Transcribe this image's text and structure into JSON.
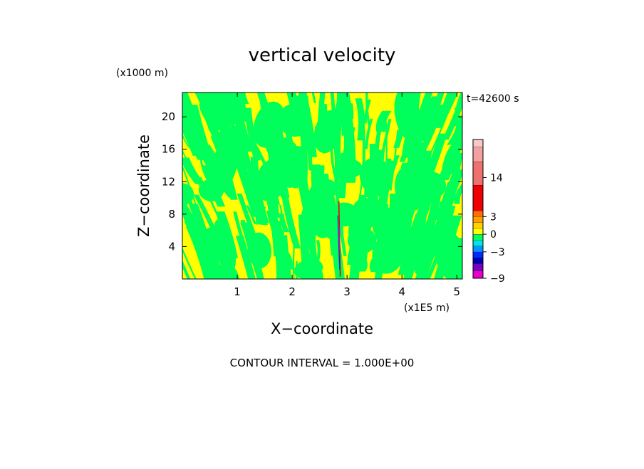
{
  "chart_data": {
    "type": "heatmap",
    "title": "vertical velocity",
    "xlabel": "X−coordinate",
    "ylabel": "Z−coordinate",
    "x_unit": "(x1E5 m)",
    "y_unit": "(x1000 m)",
    "time_label": "t=42600 s",
    "footer": "CONTOUR INTERVAL = 1.000E+00",
    "xlim": [
      0,
      5.1
    ],
    "ylim": [
      0,
      23
    ],
    "x_ticks": [
      1,
      2,
      3,
      4,
      5
    ],
    "x_tick_labels": [
      "1",
      "2",
      "3",
      "4",
      "5"
    ],
    "y_ticks": [
      4,
      8,
      12,
      16,
      20
    ],
    "y_tick_labels": [
      "4",
      "8",
      "12",
      "16",
      "20"
    ],
    "field_description": "turbulent vertically streaked field alternating between small positive (yellow) and small negative (green) vertical velocity, with a narrow strong updraft/downdraft column near x=2.85",
    "dominant_levels": [
      {
        "label": "0 to 1",
        "color": "#ffff00"
      },
      {
        "label": "-1 to 0",
        "color": "#00ff5a"
      }
    ],
    "colorbar": {
      "tick_labels": [
        "14",
        "3",
        "0",
        "−3",
        "−9"
      ],
      "tick_values": [
        14,
        3,
        0,
        -3,
        -9
      ],
      "segments": [
        {
          "from": -9,
          "to": -7,
          "color": "#e600c8"
        },
        {
          "from": -7,
          "to": -5,
          "color": "#7a00c0"
        },
        {
          "from": -5,
          "to": -4,
          "color": "#0000b4"
        },
        {
          "from": -4,
          "to": -3,
          "color": "#0028ff"
        },
        {
          "from": -3,
          "to": -2,
          "color": "#0096ff"
        },
        {
          "from": -2,
          "to": -1,
          "color": "#00e6e6"
        },
        {
          "from": -1,
          "to": 0,
          "color": "#00ff5a"
        },
        {
          "from": 0,
          "to": 1,
          "color": "#ffff00"
        },
        {
          "from": 1,
          "to": 2,
          "color": "#ffd200"
        },
        {
          "from": 2,
          "to": 3,
          "color": "#ffa000"
        },
        {
          "from": 3,
          "to": 4,
          "color": "#ff6e00"
        },
        {
          "from": 4,
          "to": 8,
          "color": "#ee0000"
        },
        {
          "from": 8,
          "to": 14,
          "color": "#f07070"
        },
        {
          "from": 14,
          "to": 17,
          "color": "#f5a0a0"
        },
        {
          "from": 17,
          "to": 20,
          "color": "#f8c8c8"
        }
      ]
    },
    "spike": {
      "x": 2.85,
      "z_bottom": 0.3,
      "z_top": 9.6,
      "colors": [
        "#ee0000",
        "#0028ff",
        "#e600c8"
      ]
    }
  }
}
